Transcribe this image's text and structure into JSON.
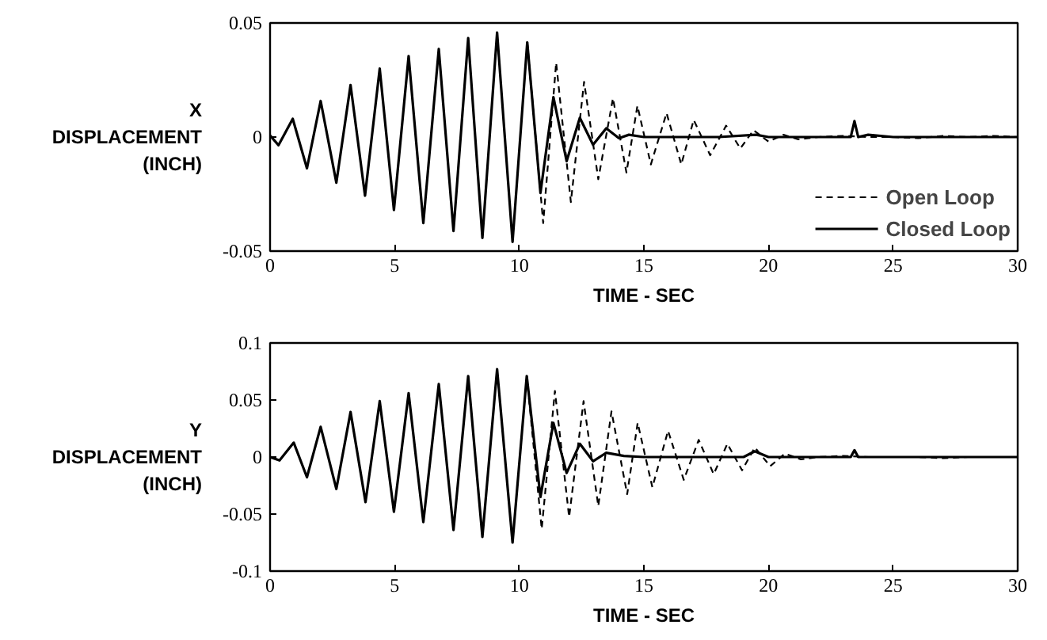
{
  "chart_data": [
    {
      "type": "line",
      "xlabel": "TIME - SEC",
      "ylabel": "X DISPLACEMENT (INCH)",
      "xlim": [
        0,
        30
      ],
      "ylim": [
        -0.05,
        0.05
      ],
      "xticks": [
        0,
        5,
        10,
        15,
        20,
        25,
        30
      ],
      "yticks": [
        -0.05,
        0,
        0.05
      ],
      "grid": false,
      "legend": "bottom right",
      "marker": "none",
      "series": [
        {
          "name": "Open Loop",
          "color": "#000000",
          "line_style": "dashed",
          "x": [
            10.32,
            10.96,
            11.48,
            12.07,
            12.6,
            13.17,
            13.76,
            14.3,
            14.74,
            15.28,
            15.91,
            16.5,
            17.0,
            17.66,
            18.3,
            18.87,
            19.4,
            20.0,
            20.6,
            21.2,
            22.0,
            23.0,
            24.0,
            25.0,
            26.0,
            27.0,
            28.0,
            29.0,
            30.0
          ],
          "values": [
            0.0415,
            -0.0377,
            0.0326,
            -0.0285,
            0.0242,
            -0.0185,
            0.017,
            -0.0156,
            0.0137,
            -0.012,
            0.0105,
            -0.012,
            0.0075,
            -0.008,
            0.005,
            -0.005,
            0.003,
            -0.002,
            0.001,
            -0.001,
            0.0,
            0.0005,
            0.0,
            0.0,
            -0.0005,
            0.0005,
            0.0,
            0.0005,
            0.0
          ]
        },
        {
          "name": "Closed Loop",
          "color": "#000000",
          "line_style": "solid",
          "x": [
            0,
            0.34,
            0.91,
            1.48,
            2.03,
            2.66,
            3.23,
            3.81,
            4.4,
            4.97,
            5.56,
            6.15,
            6.77,
            7.36,
            7.95,
            8.52,
            9.11,
            9.73,
            10.32,
            10.85,
            11.37,
            11.9,
            12.43,
            12.96,
            13.49,
            14.0,
            14.4,
            15.0,
            16.0,
            17.0,
            18.0,
            19.5,
            20.0,
            21.0,
            22.0,
            23.3,
            23.45,
            23.6,
            24.0,
            25.0,
            26.0,
            27.0,
            28.0,
            29.0,
            30.0
          ],
          "values": [
            0.0007,
            -0.0036,
            0.008,
            -0.0137,
            0.0158,
            -0.02,
            0.0228,
            -0.0257,
            0.03,
            -0.032,
            0.0355,
            -0.0377,
            0.0386,
            -0.0412,
            0.0434,
            -0.0442,
            0.0458,
            -0.046,
            0.0415,
            -0.0245,
            0.0175,
            -0.0106,
            0.0084,
            -0.0034,
            0.0038,
            -0.0005,
            0.001,
            0.0,
            0.0,
            0.0,
            0.0,
            0.001,
            0.0,
            0.0,
            0.0,
            0.0,
            0.007,
            0.0,
            0.001,
            0.0,
            0.0,
            0.0,
            0.0,
            0.0,
            0.0
          ]
        }
      ]
    },
    {
      "type": "line",
      "xlabel": "TIME - SEC",
      "ylabel": "Y DISPLACEMENT (INCH)",
      "xlim": [
        0,
        30
      ],
      "ylim": [
        -0.1,
        0.1
      ],
      "xticks": [
        0,
        5,
        10,
        15,
        20,
        25,
        30
      ],
      "yticks": [
        -0.1,
        -0.05,
        0,
        0.05,
        0.1
      ],
      "grid": false,
      "legend": false,
      "marker": "none",
      "series": [
        {
          "color": "#000000",
          "line_style": "dashed",
          "x": [
            10.3,
            10.9,
            11.43,
            12.0,
            12.58,
            13.17,
            13.7,
            14.33,
            14.75,
            15.34,
            15.97,
            16.6,
            17.2,
            17.8,
            18.35,
            18.94,
            19.45,
            20.07,
            20.66,
            21.3,
            22.0,
            23.0,
            24.0,
            25.0,
            26.0,
            27.0,
            28.0,
            29.0,
            30.0
          ],
          "values": [
            0.071,
            -0.063,
            0.058,
            -0.0526,
            0.049,
            -0.043,
            0.04,
            -0.0326,
            0.03,
            -0.0265,
            0.023,
            -0.02,
            0.015,
            -0.015,
            0.0116,
            -0.0116,
            0.0084,
            -0.008,
            0.003,
            -0.002,
            0.0,
            0.001,
            0.0,
            0.0,
            0.0,
            -0.001,
            0.0,
            0.0,
            0.0
          ]
        },
        {
          "color": "#000000",
          "line_style": "solid",
          "x": [
            0,
            0.38,
            0.95,
            1.48,
            2.03,
            2.66,
            3.23,
            3.83,
            4.4,
            4.97,
            5.56,
            6.15,
            6.77,
            7.36,
            7.95,
            8.52,
            9.11,
            9.73,
            10.3,
            10.85,
            11.37,
            11.9,
            12.43,
            12.96,
            13.49,
            14.2,
            15.0,
            16.0,
            17.0,
            18.0,
            19.0,
            19.45,
            20.0,
            21.0,
            22.0,
            23.3,
            23.45,
            23.6,
            24.0,
            25.0,
            26.0,
            27.0,
            28.0,
            29.0,
            30.0
          ],
          "values": [
            0.0,
            -0.003,
            0.0126,
            -0.0177,
            0.0265,
            -0.028,
            0.0395,
            -0.0395,
            0.049,
            -0.048,
            0.056,
            -0.057,
            0.064,
            -0.064,
            0.071,
            -0.07,
            0.077,
            -0.075,
            0.071,
            -0.035,
            0.03,
            -0.014,
            0.0116,
            -0.0037,
            0.0037,
            0.001,
            0.0,
            0.0,
            0.0,
            0.0,
            0.0,
            0.005,
            0.0,
            0.0,
            0.0,
            0.0,
            0.006,
            0.0,
            0.0,
            0.0,
            0.0,
            0.0,
            0.0,
            0.0,
            0.0
          ]
        }
      ]
    }
  ]
}
